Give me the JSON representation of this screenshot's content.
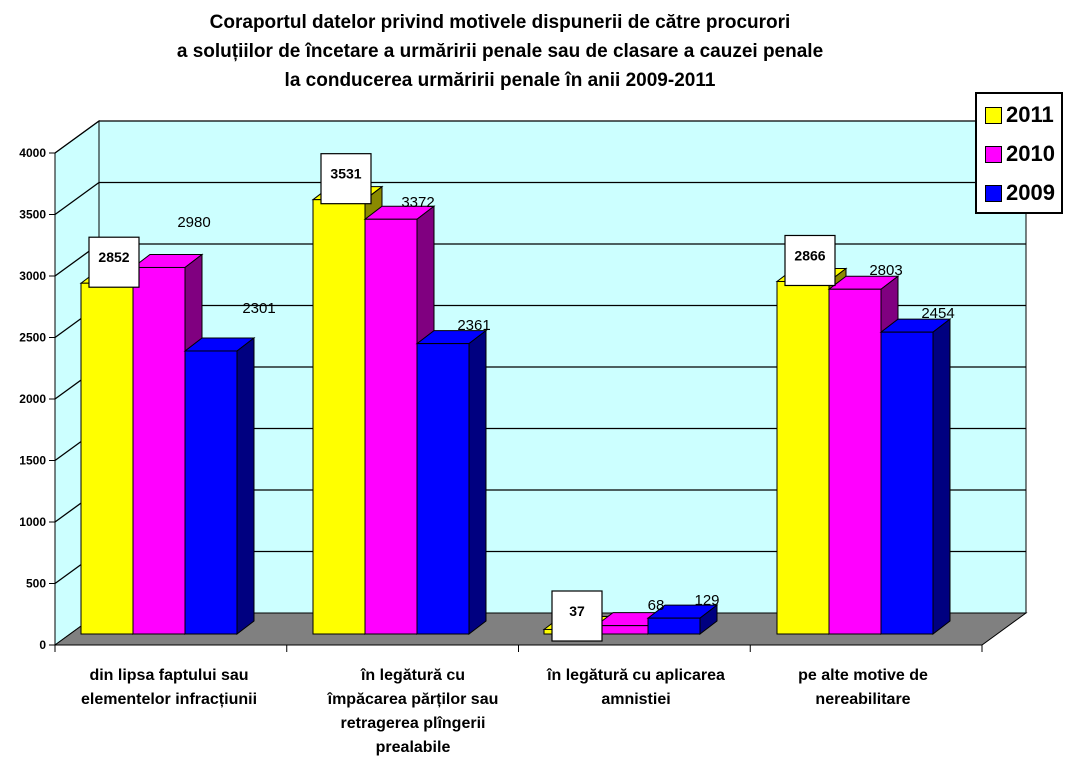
{
  "chart_data": {
    "type": "bar",
    "title_lines": [
      "Coraportul datelor privind motivele dispunerii de către procurori",
      "a soluțiilor de încetare a urmăririi penale sau de clasare a cauzei penale",
      "la conducerea urmăririi penale în  anii 2009-2011"
    ],
    "categories": [
      [
        "din lipsa faptului sau",
        "elementelor infracțiunii"
      ],
      [
        "în legătură cu",
        "împăcarea părților sau",
        "retragerea plîngerii",
        "prealabile"
      ],
      [
        "în legătură cu aplicarea",
        "amnistiei"
      ],
      [
        "pe alte motive de",
        "nereabilitare"
      ]
    ],
    "series": [
      {
        "name": "2011",
        "color": "#ffff00",
        "side_color": "#8a8a00",
        "values": [
          2852,
          3531,
          37,
          2866
        ]
      },
      {
        "name": "2010",
        "color": "#ff00ff",
        "side_color": "#800080",
        "values": [
          2980,
          3372,
          68,
          2803
        ]
      },
      {
        "name": "2009",
        "color": "#0000ff",
        "side_color": "#000080",
        "values": [
          2301,
          2361,
          129,
          2454
        ]
      }
    ],
    "y_ticks": [
      "0",
      "500",
      "1000",
      "1500",
      "2000",
      "2500",
      "3000",
      "3500",
      "4000"
    ],
    "ylim": [
      0,
      4000
    ],
    "boxed_series": "2011",
    "legend_position": "right",
    "grid": true,
    "wall_color": "#ccffff",
    "floor_color": "#808080"
  }
}
